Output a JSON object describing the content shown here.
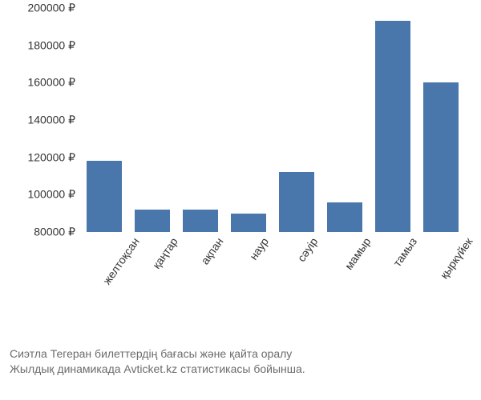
{
  "chart": {
    "type": "bar",
    "categories": [
      "желтоқсан",
      "қаңтар",
      "ақпан",
      "наур",
      "сәуір",
      "мамыр",
      "тамыз",
      "қыркүйек"
    ],
    "values": [
      118000,
      92000,
      92000,
      90000,
      112000,
      96000,
      193000,
      160000
    ],
    "bar_color": "#4a77ab",
    "background_color": "#ffffff",
    "y_axis": {
      "min": 80000,
      "max": 200000,
      "tick_step": 20000,
      "ticks": [
        80000,
        100000,
        120000,
        140000,
        160000,
        180000,
        200000
      ],
      "tick_labels": [
        "80000 ₽",
        "100000 ₽",
        "120000 ₽",
        "140000 ₽",
        "160000 ₽",
        "180000 ₽",
        "200000 ₽"
      ],
      "label_fontsize": 14,
      "label_color": "#333333"
    },
    "x_axis": {
      "label_fontsize": 14,
      "label_color": "#333333",
      "rotation_deg": -55
    },
    "bar_width": 0.72
  },
  "caption": {
    "line1": "Сиэтла Тегеран билеттердің бағасы және қайта оралу",
    "line2": "Жылдық динамикада Avticket.kz статистикасы бойынша.",
    "color": "#6b6b6b",
    "fontsize": 14
  }
}
